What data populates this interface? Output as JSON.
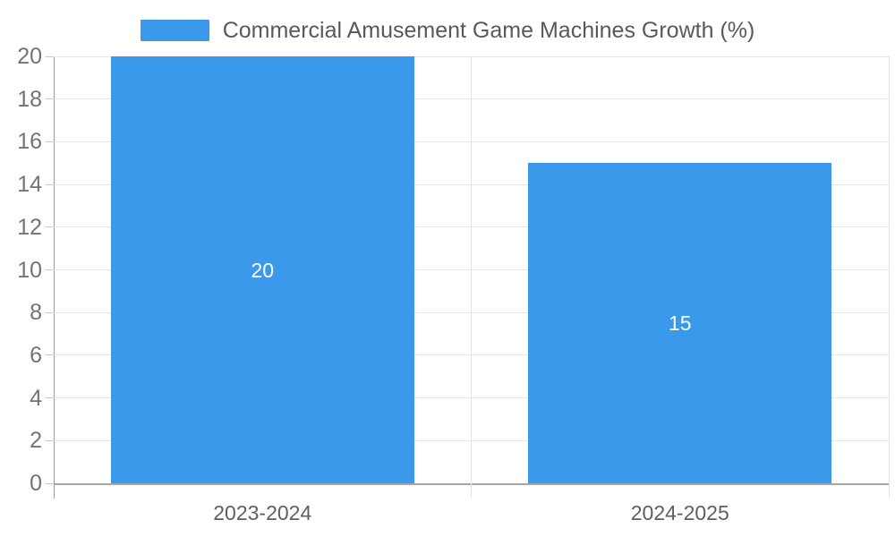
{
  "chart_data": {
    "type": "bar",
    "title": "Commercial Amusement Game Machines Growth (%)",
    "legend_label": "Commercial Amusement Game Machines Growth (%)",
    "categories": [
      "2023-2024",
      "2024-2025"
    ],
    "values": [
      20,
      15
    ],
    "data_labels": [
      "20",
      "15"
    ],
    "yticks": [
      0,
      2,
      4,
      6,
      8,
      10,
      12,
      14,
      16,
      18,
      20
    ],
    "ylim": [
      0,
      20
    ],
    "xlabel": "",
    "ylabel": "",
    "grid": true,
    "legend_position": "top-center",
    "bar_color": "#3b99ec",
    "grid_color": "#e6e6e6",
    "axis_color": "#9e9e9e",
    "label_color": "#5f5f5f"
  }
}
